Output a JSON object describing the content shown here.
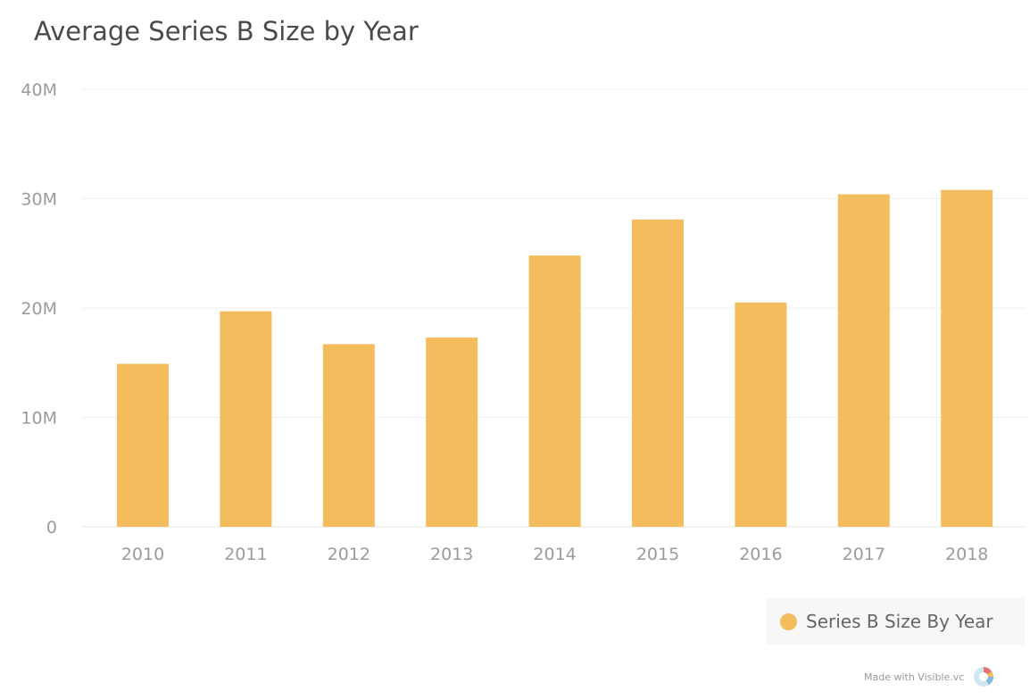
{
  "chart_data": {
    "type": "bar",
    "title": "Average Series B Size by Year",
    "categories": [
      "2010",
      "2011",
      "2012",
      "2013",
      "2014",
      "2015",
      "2016",
      "2017",
      "2018"
    ],
    "series": [
      {
        "name": "Series B Size By Year",
        "color": "#f3bc5c",
        "values": [
          14900000,
          19700000,
          16700000,
          17300000,
          24800000,
          28100000,
          20500000,
          30400000,
          30800000
        ]
      }
    ],
    "yticks": [
      0,
      10000000,
      20000000,
      30000000,
      40000000
    ],
    "ytick_labels": [
      "0",
      "10M",
      "20M",
      "30M",
      "40M"
    ],
    "ylim": [
      0,
      40000000
    ],
    "grid": true,
    "legend_position": "bottom-right",
    "xlabel": "",
    "ylabel": ""
  },
  "footer": {
    "text": "Made with Visible.vc",
    "logo_icon": "visible-logo-icon"
  }
}
